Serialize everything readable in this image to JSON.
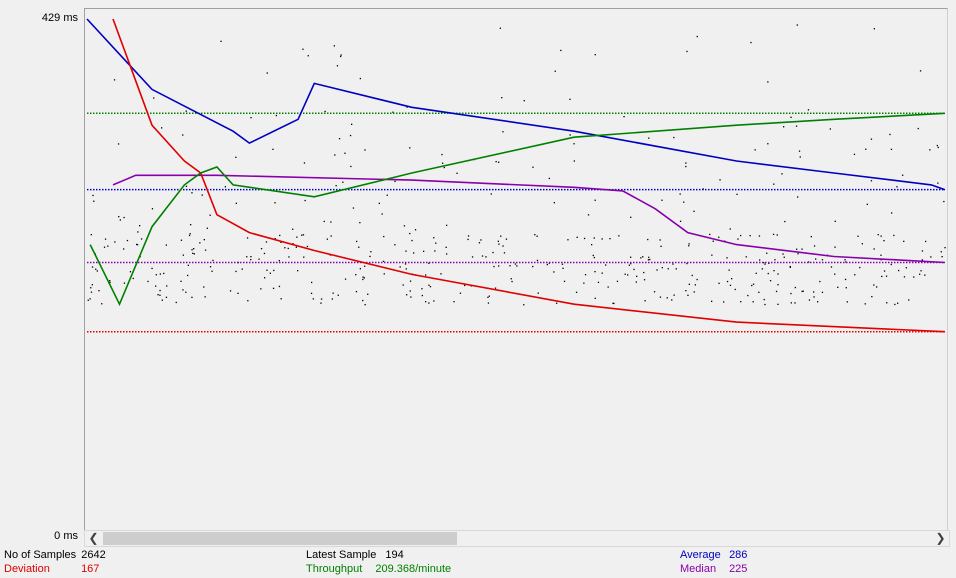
{
  "axis": {
    "max_label": "429  ms",
    "min_label": "0  ms"
  },
  "stats": {
    "samples": {
      "label": "No of Samples",
      "value": "2642"
    },
    "deviation": {
      "label": "Deviation",
      "value": "167"
    },
    "latest": {
      "label": "Latest Sample",
      "value": "194"
    },
    "throughput": {
      "label": "Throughput",
      "value": "209.368/minute"
    },
    "average": {
      "label": "Average",
      "value": "286"
    },
    "median": {
      "label": "Median",
      "value": "225"
    }
  },
  "colors": {
    "data": "#000000",
    "average": "#0000c0",
    "median": "#8800aa",
    "deviation": "#e00000",
    "throughput": "#008000"
  },
  "icons": {
    "scroll_left": "chevron-left-icon",
    "scroll_right": "chevron-right-icon"
  },
  "chart_data": {
    "type": "line",
    "ylim": [
      0,
      429
    ],
    "x_range": [
      0,
      2642
    ],
    "series": [
      {
        "name": "Average",
        "color": "#0000c0",
        "points": [
          [
            0,
            429
          ],
          [
            200,
            370
          ],
          [
            450,
            335
          ],
          [
            500,
            325
          ],
          [
            650,
            345
          ],
          [
            700,
            375
          ],
          [
            1000,
            355
          ],
          [
            1500,
            335
          ],
          [
            2000,
            310
          ],
          [
            2300,
            300
          ],
          [
            2600,
            290
          ],
          [
            2642,
            286
          ]
        ]
      },
      {
        "name": "Median",
        "color": "#8800aa",
        "points": [
          [
            80,
            290
          ],
          [
            150,
            298
          ],
          [
            400,
            298
          ],
          [
            1000,
            294
          ],
          [
            1500,
            288
          ],
          [
            1650,
            285
          ],
          [
            1750,
            270
          ],
          [
            1850,
            250
          ],
          [
            2000,
            240
          ],
          [
            2300,
            230
          ],
          [
            2642,
            225
          ]
        ]
      },
      {
        "name": "Deviation",
        "color": "#e00000",
        "points": [
          [
            80,
            429
          ],
          [
            200,
            340
          ],
          [
            300,
            310
          ],
          [
            350,
            300
          ],
          [
            400,
            265
          ],
          [
            500,
            250
          ],
          [
            700,
            235
          ],
          [
            1000,
            215
          ],
          [
            1500,
            190
          ],
          [
            2000,
            175
          ],
          [
            2642,
            167
          ]
        ]
      },
      {
        "name": "Throughput",
        "color": "#008000",
        "points": [
          [
            10,
            240
          ],
          [
            100,
            190
          ],
          [
            200,
            255
          ],
          [
            300,
            290
          ],
          [
            350,
            300
          ],
          [
            400,
            305
          ],
          [
            450,
            290
          ],
          [
            700,
            280
          ],
          [
            1000,
            300
          ],
          [
            1500,
            330
          ],
          [
            2000,
            340
          ],
          [
            2300,
            345
          ],
          [
            2642,
            350
          ]
        ]
      }
    ],
    "reference_lines": [
      {
        "name": "Average",
        "y": 286,
        "color": "#0000c0"
      },
      {
        "name": "Median",
        "y": 225,
        "color": "#8800aa"
      },
      {
        "name": "Deviation",
        "y": 167,
        "color": "#e00000"
      },
      {
        "name": "Throughput",
        "y": 350,
        "color": "#008000"
      }
    ]
  }
}
